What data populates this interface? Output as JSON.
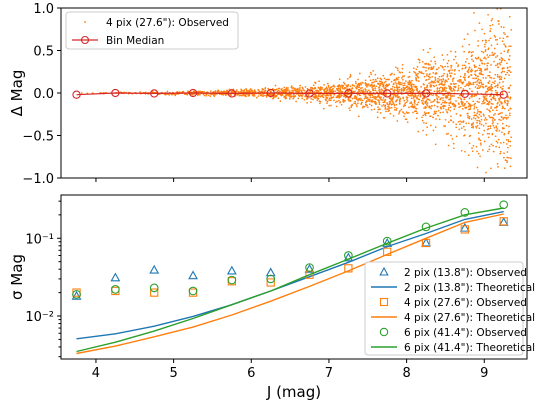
{
  "colors": {
    "c2": "#1f77b4",
    "c4": "#ff7f0e",
    "c6": "#2ca02c",
    "median_line": "#d62728",
    "scatter": "#ff7f0e"
  },
  "chart_data": [
    {
      "type": "scatter",
      "ylabel": "Δ Mag",
      "ylim": [
        -1.0,
        1.0
      ],
      "yticks": [
        "1.0",
        "0.5",
        "0.0",
        "−0.5",
        "−1.0"
      ],
      "ytick_values": [
        1.0,
        0.5,
        0.0,
        -0.5,
        -1.0
      ],
      "xlim": [
        3.55,
        9.55
      ],
      "x_ticklabels_shown": false,
      "legend_position": "top-left",
      "series": [
        {
          "name": "4 pix (27.6\"): Observed",
          "kind": "scatter-points",
          "color": "#ff7f0e",
          "description_points": "dense cloud of points; spread grows from ~±0.01 at J=3.8 to ~±0.8 at J=9.3"
        },
        {
          "name": "Bin Median",
          "kind": "line-with-circles",
          "color": "#d62728",
          "x": [
            3.75,
            4.25,
            4.75,
            5.25,
            5.75,
            6.25,
            6.75,
            7.25,
            7.75,
            8.25,
            8.75,
            9.25
          ],
          "y": [
            -0.02,
            0.0,
            -0.005,
            0.0,
            -0.005,
            0.0,
            -0.005,
            -0.005,
            -0.005,
            -0.005,
            -0.01,
            -0.02
          ]
        }
      ]
    },
    {
      "type": "scatter",
      "xlabel": "J (mag)",
      "ylabel": "σ Mag",
      "yscale": "log",
      "ylim": [
        0.0028,
        0.36
      ],
      "xlim": [
        3.55,
        9.55
      ],
      "xticks": [
        "4",
        "5",
        "6",
        "7",
        "8",
        "9"
      ],
      "xtick_values": [
        4,
        5,
        6,
        7,
        8,
        9
      ],
      "yticks": [
        "10⁻²",
        "10⁻¹"
      ],
      "ytick_values": [
        0.01,
        0.1
      ],
      "legend_position": "bottom-right",
      "series": [
        {
          "name": "2 pix (13.8\"): Observed",
          "kind": "markers-triangle",
          "color": "#1f77b4",
          "x": [
            3.75,
            4.25,
            4.75,
            5.25,
            5.75,
            6.25,
            6.75,
            7.25,
            7.75,
            8.25,
            8.75,
            9.25
          ],
          "y": [
            0.018,
            0.031,
            0.039,
            0.033,
            0.038,
            0.036,
            0.04,
            0.056,
            0.086,
            0.087,
            0.135,
            0.16
          ]
        },
        {
          "name": "2 pix (13.8\"): Theoretical",
          "kind": "line",
          "color": "#1f77b4",
          "x": [
            3.75,
            4.25,
            4.75,
            5.25,
            5.75,
            6.25,
            6.75,
            7.25,
            7.75,
            8.25,
            8.75,
            9.25
          ],
          "y": [
            0.0051,
            0.0059,
            0.0074,
            0.0099,
            0.014,
            0.021,
            0.032,
            0.049,
            0.078,
            0.115,
            0.175,
            0.22
          ]
        },
        {
          "name": "4 pix (27.6\"): Observed",
          "kind": "markers-square",
          "color": "#ff7f0e",
          "x": [
            3.75,
            4.25,
            4.75,
            5.25,
            5.75,
            6.25,
            6.75,
            7.25,
            7.75,
            8.25,
            8.75,
            9.25
          ],
          "y": [
            0.02,
            0.021,
            0.02,
            0.02,
            0.028,
            0.027,
            0.034,
            0.041,
            0.067,
            0.087,
            0.13,
            0.165
          ]
        },
        {
          "name": "4 pix (27.6\"): Theoretical",
          "kind": "line",
          "color": "#ff7f0e",
          "x": [
            3.75,
            4.25,
            4.75,
            5.25,
            5.75,
            6.25,
            6.75,
            7.25,
            7.75,
            8.25,
            8.75,
            9.25
          ],
          "y": [
            0.0033,
            0.0041,
            0.0054,
            0.0072,
            0.0103,
            0.0155,
            0.024,
            0.038,
            0.062,
            0.1,
            0.16,
            0.205
          ]
        },
        {
          "name": "6 pix (41.4\"): Observed",
          "kind": "markers-circle",
          "color": "#2ca02c",
          "x": [
            3.75,
            4.25,
            4.75,
            5.25,
            5.75,
            6.25,
            6.75,
            7.25,
            7.75,
            8.25,
            8.75,
            9.25
          ],
          "y": [
            0.019,
            0.022,
            0.023,
            0.021,
            0.029,
            0.03,
            0.042,
            0.06,
            0.092,
            0.14,
            0.215,
            0.27
          ]
        },
        {
          "name": "6 pix (41.4\"): Theoretical",
          "kind": "line",
          "color": "#2ca02c",
          "x": [
            3.75,
            4.25,
            4.75,
            5.25,
            5.75,
            6.25,
            6.75,
            7.25,
            7.75,
            8.25,
            8.75,
            9.25
          ],
          "y": [
            0.0035,
            0.0046,
            0.0064,
            0.0093,
            0.014,
            0.021,
            0.034,
            0.054,
            0.086,
            0.135,
            0.2,
            0.245
          ]
        }
      ]
    }
  ]
}
